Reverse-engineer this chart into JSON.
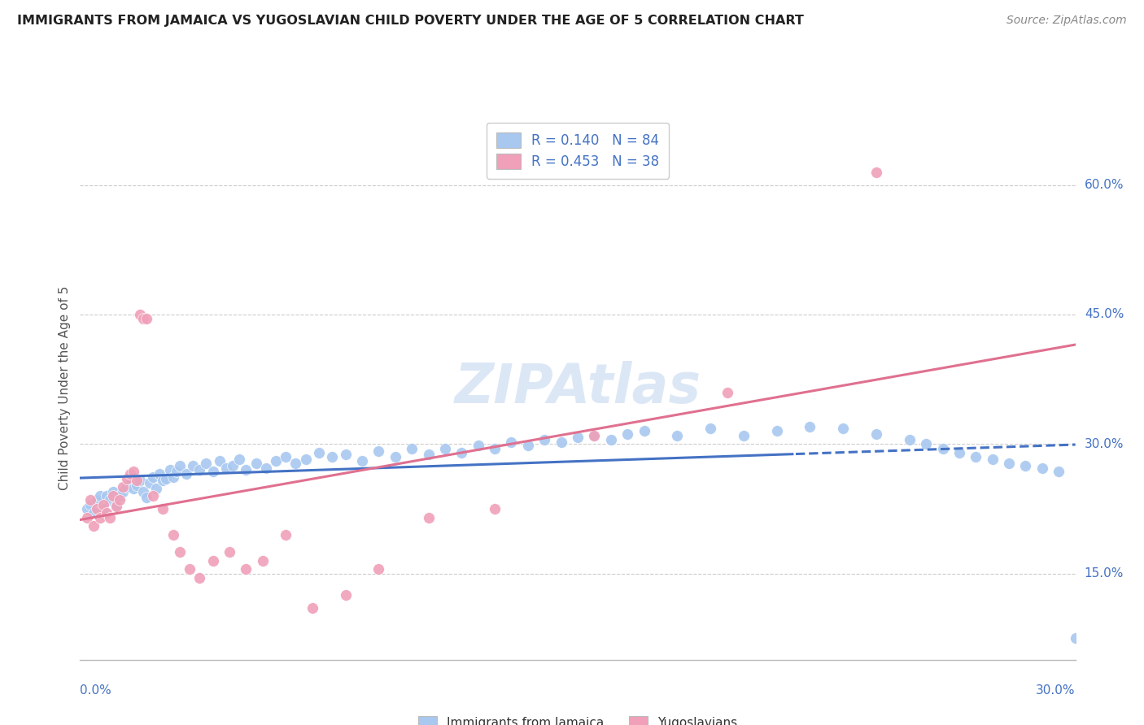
{
  "title": "IMMIGRANTS FROM JAMAICA VS YUGOSLAVIAN CHILD POVERTY UNDER THE AGE OF 5 CORRELATION CHART",
  "source": "Source: ZipAtlas.com",
  "ylabel": "Child Poverty Under the Age of 5",
  "yticks": [
    "15.0%",
    "30.0%",
    "45.0%",
    "60.0%"
  ],
  "ytick_values": [
    0.15,
    0.3,
    0.45,
    0.6
  ],
  "xmin": 0.0,
  "xmax": 0.3,
  "ymin": 0.05,
  "ymax": 0.68,
  "jamaica_color": "#a8c8f0",
  "yugoslavian_color": "#f0a0b8",
  "jamaica_line_color": "#4472c4",
  "yugoslavian_line_color": "#e07090",
  "jamaica_scatter_x": [
    0.002,
    0.003,
    0.004,
    0.005,
    0.006,
    0.007,
    0.008,
    0.009,
    0.01,
    0.011,
    0.012,
    0.013,
    0.014,
    0.015,
    0.016,
    0.017,
    0.018,
    0.019,
    0.02,
    0.021,
    0.022,
    0.023,
    0.024,
    0.025,
    0.026,
    0.027,
    0.028,
    0.029,
    0.03,
    0.032,
    0.034,
    0.036,
    0.038,
    0.04,
    0.042,
    0.044,
    0.046,
    0.048,
    0.05,
    0.053,
    0.056,
    0.059,
    0.062,
    0.065,
    0.068,
    0.072,
    0.076,
    0.08,
    0.085,
    0.09,
    0.095,
    0.1,
    0.105,
    0.11,
    0.115,
    0.12,
    0.125,
    0.13,
    0.135,
    0.14,
    0.145,
    0.15,
    0.155,
    0.16,
    0.165,
    0.17,
    0.18,
    0.19,
    0.2,
    0.21,
    0.22,
    0.23,
    0.24,
    0.25,
    0.255,
    0.26,
    0.265,
    0.27,
    0.275,
    0.28,
    0.285,
    0.29,
    0.295,
    0.3
  ],
  "jamaica_scatter_y": [
    0.225,
    0.23,
    0.22,
    0.235,
    0.24,
    0.225,
    0.24,
    0.235,
    0.245,
    0.23,
    0.24,
    0.245,
    0.25,
    0.255,
    0.248,
    0.252,
    0.258,
    0.245,
    0.238,
    0.255,
    0.262,
    0.248,
    0.265,
    0.258,
    0.26,
    0.27,
    0.262,
    0.268,
    0.275,
    0.265,
    0.275,
    0.27,
    0.278,
    0.268,
    0.28,
    0.272,
    0.275,
    0.282,
    0.27,
    0.278,
    0.272,
    0.28,
    0.285,
    0.278,
    0.282,
    0.29,
    0.285,
    0.288,
    0.28,
    0.292,
    0.285,
    0.295,
    0.288,
    0.295,
    0.29,
    0.298,
    0.295,
    0.302,
    0.298,
    0.305,
    0.302,
    0.308,
    0.31,
    0.305,
    0.312,
    0.315,
    0.31,
    0.318,
    0.31,
    0.315,
    0.32,
    0.318,
    0.312,
    0.305,
    0.3,
    0.295,
    0.29,
    0.285,
    0.282,
    0.278,
    0.275,
    0.272,
    0.268,
    0.075
  ],
  "yugoslavian_scatter_x": [
    0.002,
    0.003,
    0.004,
    0.005,
    0.006,
    0.007,
    0.008,
    0.009,
    0.01,
    0.011,
    0.012,
    0.013,
    0.014,
    0.015,
    0.016,
    0.017,
    0.018,
    0.019,
    0.02,
    0.022,
    0.025,
    0.028,
    0.03,
    0.033,
    0.036,
    0.04,
    0.045,
    0.05,
    0.055,
    0.062,
    0.07,
    0.08,
    0.09,
    0.105,
    0.125,
    0.155,
    0.195,
    0.24
  ],
  "yugoslavian_scatter_y": [
    0.215,
    0.235,
    0.205,
    0.225,
    0.215,
    0.23,
    0.22,
    0.215,
    0.24,
    0.228,
    0.235,
    0.25,
    0.26,
    0.265,
    0.268,
    0.258,
    0.45,
    0.445,
    0.445,
    0.24,
    0.225,
    0.195,
    0.175,
    0.155,
    0.145,
    0.165,
    0.175,
    0.155,
    0.165,
    0.195,
    0.11,
    0.125,
    0.155,
    0.215,
    0.225,
    0.31,
    0.36,
    0.615
  ]
}
